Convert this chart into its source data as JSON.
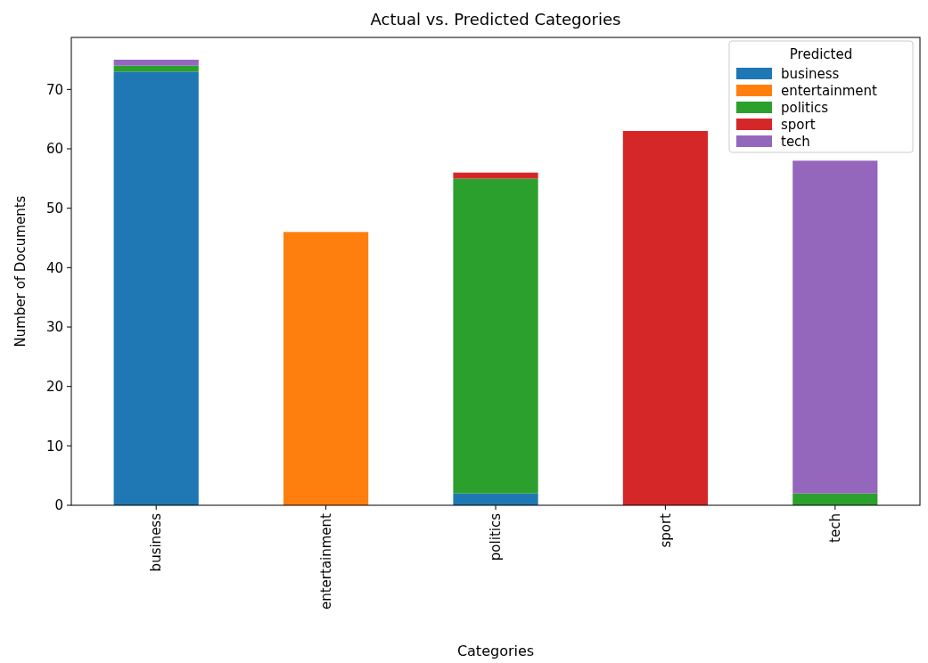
{
  "chart_data": {
    "type": "bar",
    "title": "Actual vs. Predicted Categories",
    "xlabel": "Categories",
    "ylabel": "Number of Documents",
    "legend_title": "Predicted",
    "categories": [
      "business",
      "entertainment",
      "politics",
      "sport",
      "tech"
    ],
    "stacked": true,
    "ylim": [
      0,
      78.75
    ],
    "yticks": [
      0,
      10,
      20,
      30,
      40,
      50,
      60,
      70
    ],
    "grid": false,
    "legend": "top right",
    "series": [
      {
        "name": "business",
        "color": "#1f77b4",
        "values": [
          73,
          0,
          2,
          0,
          0
        ]
      },
      {
        "name": "entertainment",
        "color": "#ff7f0e",
        "values": [
          0,
          46,
          0,
          0,
          0
        ]
      },
      {
        "name": "politics",
        "color": "#2ca02c",
        "values": [
          1,
          0,
          53,
          0,
          2
        ]
      },
      {
        "name": "sport",
        "color": "#d62728",
        "values": [
          0,
          0,
          1,
          63,
          0
        ]
      },
      {
        "name": "tech",
        "color": "#9467bd",
        "values": [
          1,
          0,
          0,
          0,
          56
        ]
      }
    ]
  }
}
